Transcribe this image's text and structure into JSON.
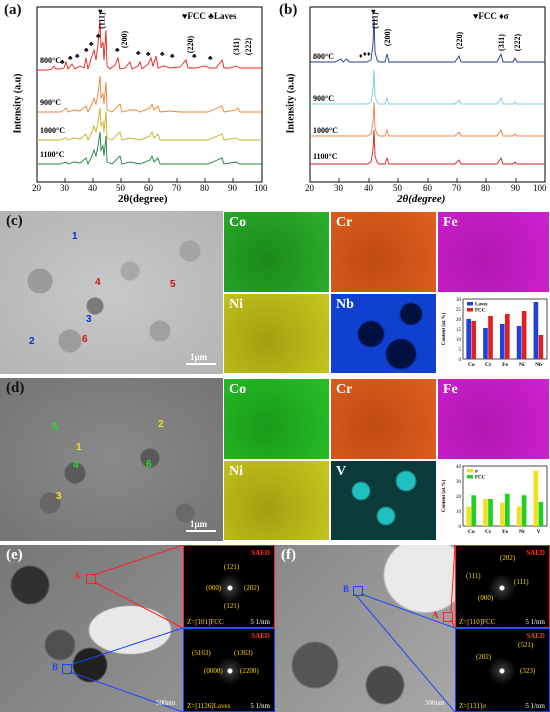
{
  "panel_a": {
    "letter": "(a)",
    "legend": "♥FCC ♣Laves",
    "ylabel": "Intensity (a.u)",
    "xlabel": "2θ(degree)",
    "xticks": [
      "20",
      "30",
      "40",
      "50",
      "60",
      "70",
      "80",
      "90",
      "100"
    ],
    "temps": [
      "800°C",
      "900°C",
      "1000°C",
      "1100°C"
    ],
    "peaks": [
      "(111)",
      "(200)",
      "(220)",
      "(311)",
      "(222)"
    ]
  },
  "panel_b": {
    "letter": "(b)",
    "legend": "♥FCC ♦σ",
    "ylabel": "Intensity (a.u)",
    "xlabel": "2θ(degree)",
    "xticks": [
      "20",
      "30",
      "40",
      "50",
      "60",
      "70",
      "80",
      "90",
      "100"
    ],
    "temps": [
      "800°C",
      "900°C",
      "1000°C",
      "1100°C"
    ],
    "peaks": [
      "(111)",
      "(200)",
      "(220)",
      "(311)",
      "(222)"
    ]
  },
  "panel_c": {
    "letter": "(c)",
    "points": [
      "1",
      "2",
      "3",
      "4",
      "5",
      "6"
    ],
    "scale": "1μm",
    "maps": [
      "Co",
      "Cr",
      "Fe",
      "Ni",
      "Nb"
    ],
    "bar_legend": [
      "Laves",
      "FCC"
    ],
    "bar_ylabel": "Content (at.%)",
    "bar_yticks": [
      "0",
      "5",
      "10",
      "15",
      "20",
      "25",
      "30"
    ]
  },
  "panel_d": {
    "letter": "(d)",
    "points": [
      "1",
      "2",
      "3",
      "4",
      "5",
      "6"
    ],
    "scale": "1μm",
    "maps": [
      "Co",
      "Cr",
      "Fe",
      "Ni",
      "V"
    ],
    "bar_legend": [
      "σ",
      "FCC"
    ],
    "bar_ylabel": "Content (at.%)",
    "bar_yticks": [
      "0",
      "10",
      "20",
      "30",
      "40"
    ]
  },
  "panel_e": {
    "letter": "(e)",
    "regionA": "A",
    "regionB": "B",
    "scale": "500nm",
    "saed_top": {
      "title": "SAED",
      "spots": [
        "(121)",
        "(000)",
        "(202)",
        "(121)"
      ],
      "zone": "Z=[101]FCC",
      "scale": "5 1/nm"
    },
    "saed_bottom": {
      "title": "SAED",
      "spots": [
        "(5163)",
        "(1363)",
        "(0000)",
        "(2200)"
      ],
      "zone": "Z=[1126]Laves",
      "scale": "5 1/nm"
    }
  },
  "panel_f": {
    "letter": "(f)",
    "regionA": "A",
    "regionB": "B",
    "scale": "500nm",
    "saed_top": {
      "title": "SAED",
      "spots": [
        "(202)",
        "(111)",
        "(111)",
        "(000)"
      ],
      "zone": "Z=[110]FCC",
      "scale": "5 1/nm"
    },
    "saed_bottom": {
      "title": "SAED",
      "spots": [
        "(521)",
        "(202)",
        "(323)"
      ],
      "zone": "Z=[131]σ",
      "scale": "5 1/nm"
    }
  },
  "chart_data": [
    {
      "type": "bar",
      "panel": "c",
      "categories": [
        "Co",
        "Cr",
        "Fe",
        "Ni",
        "Nb"
      ],
      "ylabel": "Content (at.%)",
      "ylim": [
        0,
        30
      ],
      "legend_position": "top-left",
      "series": [
        {
          "name": "Laves",
          "color": "#2040e0",
          "values": [
            20,
            15.5,
            17.5,
            16.5,
            28.5
          ]
        },
        {
          "name": "FCC",
          "color": "#e02020",
          "values": [
            19,
            21.5,
            22.5,
            24,
            12
          ]
        }
      ]
    },
    {
      "type": "bar",
      "panel": "d",
      "categories": [
        "Co",
        "Cr",
        "Fe",
        "Ni",
        "V"
      ],
      "ylabel": "Content (at.%)",
      "ylim": [
        0,
        40
      ],
      "legend_position": "top-left",
      "series": [
        {
          "name": "σ",
          "color": "#f0e020",
          "values": [
            13,
            18,
            15.5,
            13,
            37
          ]
        },
        {
          "name": "FCC",
          "color": "#20d020",
          "values": [
            20.5,
            18,
            21.5,
            20.5,
            16
          ]
        }
      ]
    }
  ]
}
